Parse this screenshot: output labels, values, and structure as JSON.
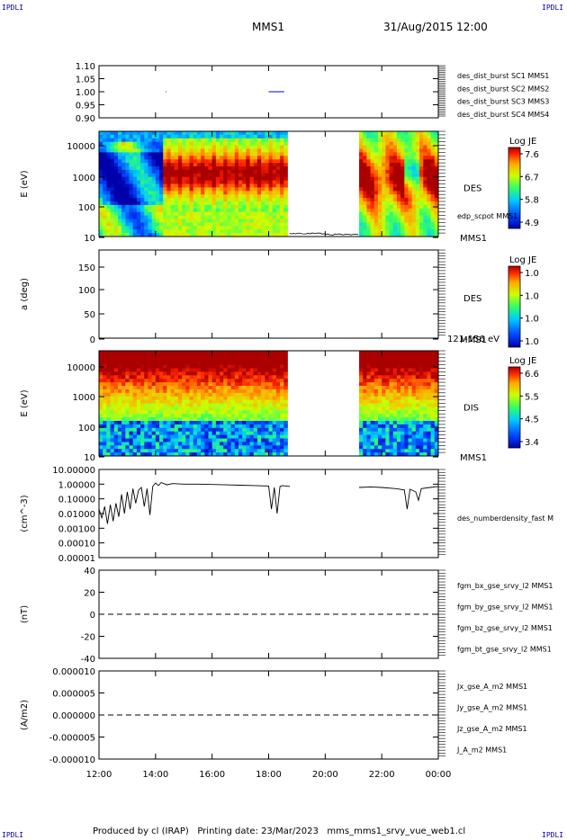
{
  "page": {
    "corner_tl": "IPDLI",
    "corner_tr": "IPDLI",
    "corner_bl": "IPDLI",
    "corner_br": "IPDLI",
    "spacecraft": "MMS1",
    "datetime": "31/Aug/2015 12:00",
    "footer": "Produced by cl (IRAP)   Printing date: 23/Mar/2023   mms_mms1_srvy_vue_web1.cl"
  },
  "colors": {
    "blue": "#0000cc",
    "magenta": "#cc00cc",
    "red": "#dd0000",
    "green": "#00bb00",
    "black": "#000000"
  },
  "chart_data": [
    {
      "type": "line",
      "id": "dist_burst",
      "ylim": [
        0.9,
        1.1
      ],
      "yticks": [
        "1.10",
        "1.05",
        "1.00",
        "0.95",
        "0.90"
      ],
      "legend": [
        {
          "label": "des_dist_burst SC1 MMS1",
          "color": "#0000cc"
        },
        {
          "label": "des_dist_burst SC2 MMS2",
          "color": "#cc00cc"
        },
        {
          "label": "des_dist_burst SC3 MMS3",
          "color": "#dd0000"
        },
        {
          "label": "des_dist_burst SC4 MMS4",
          "color": "#00bb00"
        }
      ],
      "series": [
        {
          "color": "#0000cc",
          "segments": [
            [
              14.35,
              14.38
            ],
            [
              18.0,
              18.55
            ]
          ],
          "value": 1.0
        }
      ]
    },
    {
      "type": "heatmap",
      "id": "des_energy",
      "ylabel": "E (eV)",
      "yticks": [
        "10000",
        "1000",
        "100",
        "10"
      ],
      "label_right": "DES",
      "label_sc": "MMS1",
      "overlay_label": "edp_scpot MMS1",
      "colorbar": {
        "title": "Log JE",
        "ticks": [
          "7.6",
          "6.7",
          "5.8",
          "4.9"
        ]
      },
      "data_gap": [
        18.75,
        21.2
      ]
    },
    {
      "type": "heatmap",
      "id": "des_pitch",
      "ylabel": "a (deg)",
      "yticks": [
        "150",
        "100",
        "50",
        "0"
      ],
      "label_right": "DES",
      "label_sc": "MMS1",
      "energy_range": "121-156 eV",
      "colorbar": {
        "title": "Log JE",
        "ticks": [
          "1.0",
          "1.0",
          "1.0",
          "1.0"
        ]
      }
    },
    {
      "type": "heatmap",
      "id": "dis_energy",
      "ylabel": "E (eV)",
      "yticks": [
        "10000",
        "1000",
        "100",
        "10"
      ],
      "label_right": "DIS",
      "label_sc": "MMS1",
      "colorbar": {
        "title": "Log JE",
        "ticks": [
          "6.6",
          "5.5",
          "4.5",
          "3.4"
        ]
      },
      "data_gap": [
        18.75,
        21.2
      ]
    },
    {
      "type": "line",
      "id": "density",
      "ylabel": "(cm^-3)",
      "yticks": [
        "10.00000",
        "1.00000",
        "0.10000",
        "0.01000",
        "0.00100",
        "0.00010",
        "0.00001"
      ],
      "legend": [
        {
          "label": "des_numberdensity_fast M",
          "color": "#000000"
        }
      ],
      "points": [
        [
          12.0,
          0.02
        ],
        [
          12.1,
          0.005
        ],
        [
          12.2,
          0.03
        ],
        [
          12.3,
          0.002
        ],
        [
          12.4,
          0.04
        ],
        [
          12.5,
          0.003
        ],
        [
          12.6,
          0.05
        ],
        [
          12.7,
          0.006
        ],
        [
          12.8,
          0.2
        ],
        [
          12.9,
          0.01
        ],
        [
          13.0,
          0.3
        ],
        [
          13.1,
          0.02
        ],
        [
          13.2,
          0.5
        ],
        [
          13.3,
          0.05
        ],
        [
          13.4,
          0.4
        ],
        [
          13.5,
          0.6
        ],
        [
          13.6,
          0.03
        ],
        [
          13.7,
          0.5
        ],
        [
          13.8,
          0.008
        ],
        [
          13.9,
          0.7
        ],
        [
          14.0,
          1.2
        ],
        [
          14.1,
          0.8
        ],
        [
          14.2,
          1.3
        ],
        [
          14.4,
          0.9
        ],
        [
          14.6,
          1.1
        ],
        [
          15.0,
          1.0
        ],
        [
          15.5,
          1.0
        ],
        [
          16.0,
          0.95
        ],
        [
          16.5,
          0.9
        ],
        [
          17.0,
          0.85
        ],
        [
          17.5,
          0.8
        ],
        [
          18.0,
          0.75
        ],
        [
          18.1,
          0.02
        ],
        [
          18.2,
          0.6
        ],
        [
          18.3,
          0.01
        ],
        [
          18.4,
          0.7
        ],
        [
          18.5,
          0.8
        ],
        [
          18.75,
          0.7
        ]
      ],
      "points2": [
        [
          21.2,
          0.6
        ],
        [
          21.6,
          0.65
        ],
        [
          22.0,
          0.6
        ],
        [
          22.5,
          0.5
        ],
        [
          22.8,
          0.4
        ],
        [
          22.9,
          0.02
        ],
        [
          23.0,
          0.45
        ],
        [
          23.2,
          0.3
        ],
        [
          23.3,
          0.08
        ],
        [
          23.4,
          0.5
        ],
        [
          23.7,
          0.6
        ],
        [
          24.0,
          0.7
        ]
      ]
    },
    {
      "type": "line",
      "id": "field",
      "ylabel": "(nT)",
      "yticks": [
        "40",
        "20",
        "0",
        "-20",
        "-40"
      ],
      "ylim": [
        -50,
        50
      ],
      "legend": [
        {
          "label": "fgm_bx_gse_srvy_l2 MMS1",
          "color": "#dd0000"
        },
        {
          "label": "fgm_by_gse_srvy_l2 MMS1",
          "color": "#00bb00"
        },
        {
          "label": "fgm_bz_gse_srvy_l2 MMS1",
          "color": "#0000cc"
        },
        {
          "label": "fgm_bt_gse_srvy_l2 MMS1",
          "color": "#000000"
        }
      ]
    },
    {
      "type": "line",
      "id": "current",
      "ylabel": "(A/m2)",
      "yticks": [
        "0.000010",
        "0.000005",
        "0.000000",
        "-0.000005",
        "-0.000010"
      ],
      "ylim": [
        -1e-05,
        1e-05
      ],
      "legend": [
        {
          "label": "Jx_gse_A_m2 MMS1",
          "color": "#dd0000"
        },
        {
          "label": "Jy_gse_A_m2 MMS1",
          "color": "#00bb00"
        },
        {
          "label": "Jz_gse_A_m2 MMS1",
          "color": "#0000cc"
        },
        {
          "label": "J_A_m2 MMS1",
          "color": "#000000"
        }
      ]
    }
  ],
  "time_axis": {
    "range": [
      12,
      24
    ],
    "labels": [
      "12:00",
      "14:00",
      "16:00",
      "18:00",
      "20:00",
      "22:00",
      "00:00"
    ]
  }
}
